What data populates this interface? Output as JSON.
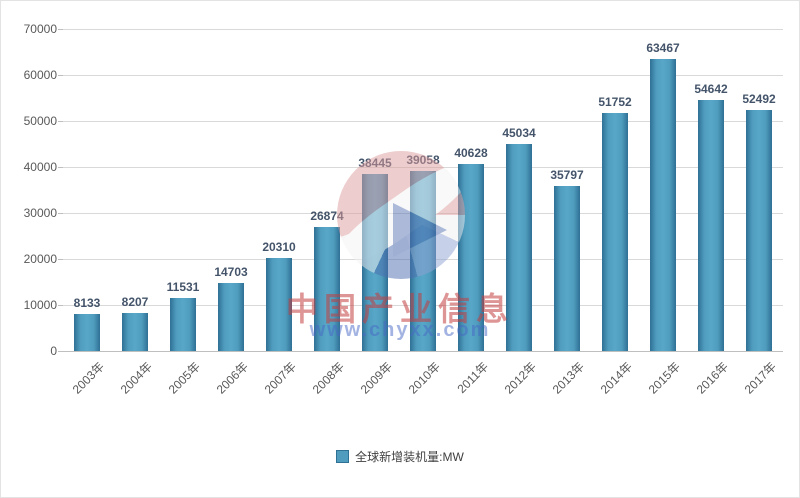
{
  "chart_data": {
    "type": "bar",
    "title": "",
    "xlabel": "",
    "ylabel": "",
    "categories": [
      "2003年",
      "2004年",
      "2005年",
      "2006年",
      "2007年",
      "2008年",
      "2009年",
      "2010年",
      "2011年",
      "2012年",
      "2013年",
      "2014年",
      "2015年",
      "2016年",
      "2017年"
    ],
    "values": [
      8133,
      8207,
      11531,
      14703,
      20310,
      26874,
      38445,
      39058,
      40628,
      45034,
      35797,
      51752,
      63467,
      54642,
      52492
    ],
    "ylim": [
      0,
      70000
    ],
    "yticks": [
      0,
      10000,
      20000,
      30000,
      40000,
      50000,
      60000,
      70000
    ],
    "grid": true,
    "legend_position": "bottom",
    "legend": "全球新增装机量:MW",
    "data_labels": true
  },
  "legend": {
    "label": "全球新增装机量:MW"
  },
  "watermark": {
    "title": "中国产业信息",
    "url": "www.chyxx.com"
  },
  "colors": {
    "bar_fill": "#4f9cbe",
    "bar_edge": "#2f7095",
    "gridline": "#d9d9d9",
    "value_label": "#44546a",
    "axis_text": "#595959",
    "watermark_red": "#c33e3e",
    "watermark_blue": "#4868c6"
  }
}
